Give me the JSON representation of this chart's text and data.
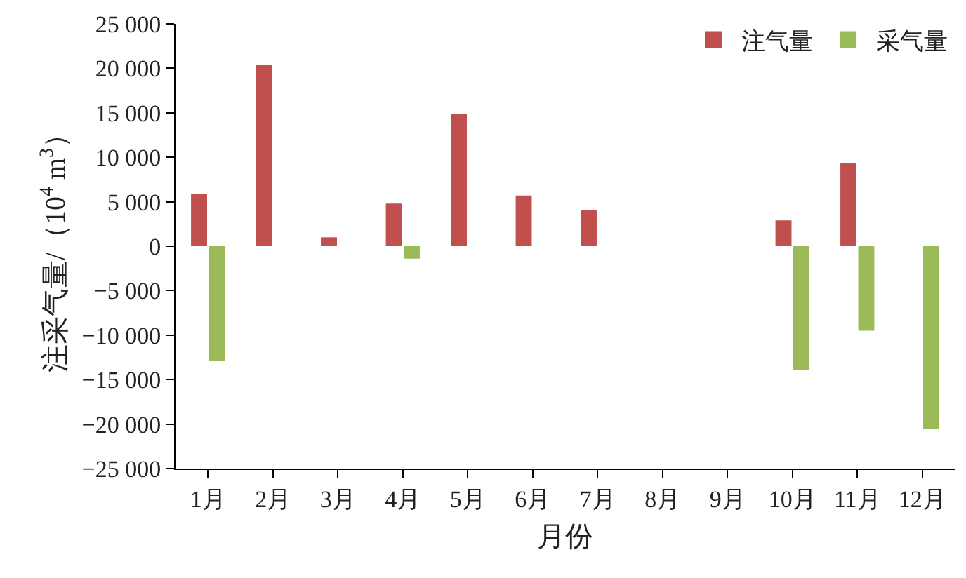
{
  "chart_data": {
    "type": "bar",
    "xlabel": "月份",
    "ylabel": "注采气量/（10$^{4}$ m$^{3}$）",
    "categories": [
      "1月",
      "2月",
      "3月",
      "4月",
      "5月",
      "6月",
      "7月",
      "8月",
      "9月",
      "10月",
      "11月",
      "12月"
    ],
    "series": [
      {
        "name": "注气量",
        "color": "#c0504d",
        "values": [
          5900,
          20400,
          1000,
          4800,
          14900,
          5700,
          4100,
          null,
          null,
          2900,
          9300,
          null
        ]
      },
      {
        "name": "采气量",
        "color": "#9bbb59",
        "values": [
          -12900,
          null,
          null,
          -1400,
          null,
          null,
          null,
          null,
          null,
          -13900,
          -9500,
          -20500
        ]
      }
    ],
    "ylim": [
      -25000,
      25000
    ],
    "yticks": [
      {
        "value": -25000,
        "label": "−25 000"
      },
      {
        "value": -20000,
        "label": "−20 000"
      },
      {
        "value": -15000,
        "label": "−15 000"
      },
      {
        "value": -10000,
        "label": "−10 000"
      },
      {
        "value": -5000,
        "label": "−5 000"
      },
      0,
      {
        "value": 5000,
        "label": "5 000"
      },
      {
        "value": 10000,
        "label": "10 000"
      },
      {
        "value": 15000,
        "label": "15 000"
      },
      {
        "value": 20000,
        "label": "20 000"
      },
      {
        "value": 25000,
        "label": "25 000"
      }
    ],
    "grid": false,
    "legend": "top right"
  }
}
